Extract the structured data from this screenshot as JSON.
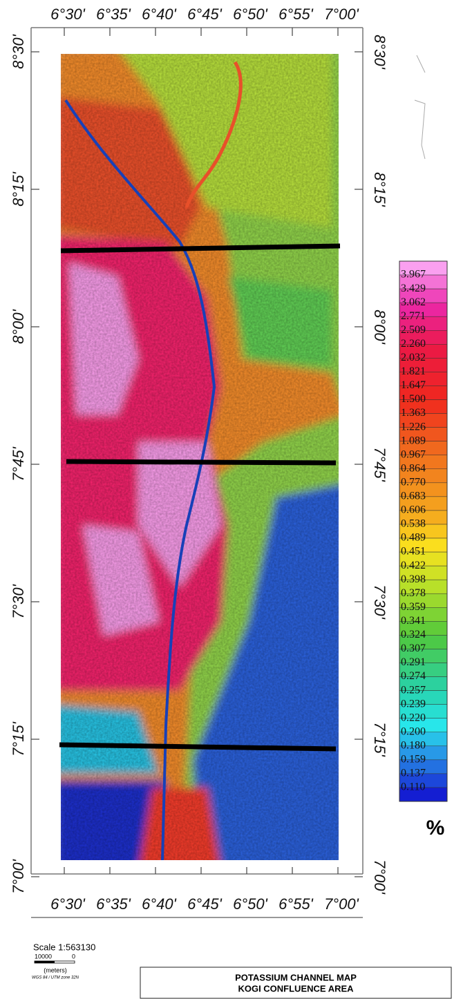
{
  "map": {
    "top_labels": [
      "6°30'",
      "6°35'",
      "6°40'",
      "6°45'",
      "6°50'",
      "6°55'",
      "7°00'"
    ],
    "bottom_labels": [
      "6°30'",
      "6°35'",
      "6°40'",
      "6°45'",
      "6°50'",
      "6°55'",
      "7°00'"
    ],
    "left_labels": [
      "8°30'",
      "8°15'",
      "8°00'",
      "7°45'",
      "7°30'",
      "7°15'",
      "7°00'"
    ],
    "right_labels": [
      "8°30'",
      "8°15'",
      "8°00'",
      "7°45'",
      "7°30'",
      "7°15'",
      "7°00'"
    ]
  },
  "legend": {
    "labels": [
      "3.967",
      "3.429",
      "3.062",
      "2.771",
      "2.509",
      "2.260",
      "2.032",
      "1.821",
      "1.647",
      "1.500",
      "1.363",
      "1.226",
      "1.089",
      "0.967",
      "0.864",
      "0.770",
      "0.683",
      "0.606",
      "0.538",
      "0.489",
      "0.451",
      "0.422",
      "0.398",
      "0.378",
      "0.359",
      "0.341",
      "0.324",
      "0.307",
      "0.291",
      "0.274",
      "0.257",
      "0.239",
      "0.220",
      "0.200",
      "0.180",
      "0.159",
      "0.137",
      "0.110"
    ],
    "unit": "%"
  },
  "scale": {
    "title": "Scale 1:563130",
    "bar_labels": [
      "10000",
      "0"
    ],
    "unit": "(meters)",
    "projection": "WGS 84 / UTM zone 32N"
  },
  "title_box": {
    "lines": [
      "POTASSIUM CHANNEL MAP",
      "KOGI CONFLUENCE AREA"
    ]
  }
}
